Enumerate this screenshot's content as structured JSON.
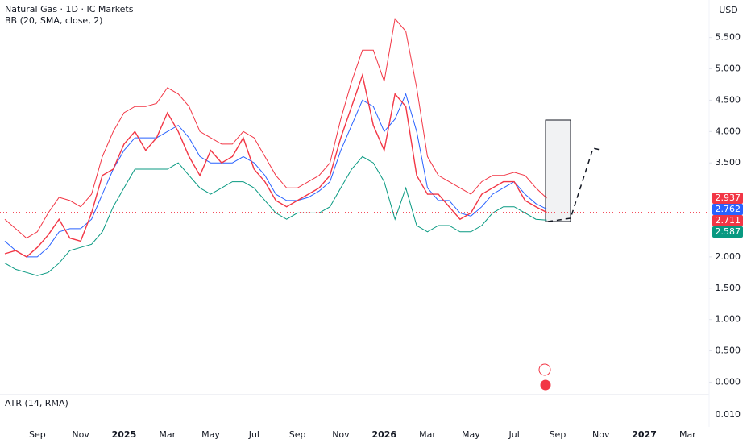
{
  "chart_data": {
    "type": "bollinger",
    "title": "Natural Gas · 1D · IC Markets",
    "indicator": "BB (20, SMA, close, 2)",
    "currency": "USD",
    "categories": [
      null,
      null,
      null,
      "Sep",
      null,
      null,
      null,
      "Nov",
      null,
      null,
      null,
      "2025",
      null,
      null,
      null,
      "Mar",
      null,
      null,
      null,
      "May",
      null,
      null,
      null,
      "Jul",
      null,
      null,
      null,
      "Sep",
      null,
      null,
      null,
      "Nov",
      null,
      null,
      null,
      "2026",
      null,
      null,
      null,
      "Mar",
      null,
      null,
      null,
      "May",
      null,
      null,
      null,
      "Jul",
      null,
      null,
      null,
      "Sep",
      null,
      null,
      null,
      "Nov",
      null,
      null,
      null,
      "2027",
      null,
      null,
      null,
      "Mar"
    ],
    "series": [
      {
        "color": "#f23645",
        "values": [
          2.05,
          2.1,
          2.0,
          2.15,
          2.35,
          2.6,
          2.3,
          2.25,
          2.7,
          3.3,
          3.4,
          3.8,
          4.0,
          3.7,
          3.9,
          4.3,
          4.0,
          3.6,
          3.3,
          3.7,
          3.5,
          3.6,
          3.9,
          3.4,
          3.2,
          2.9,
          2.8,
          2.9,
          3.0,
          3.1,
          3.3,
          3.9,
          4.4,
          4.9,
          4.1,
          3.7,
          4.6,
          4.4,
          3.3,
          3.0,
          3.0,
          2.8,
          2.6,
          2.7,
          3.0,
          3.1,
          3.2,
          3.2,
          2.9,
          2.8,
          2.711,
          null,
          null,
          null,
          null,
          null,
          null,
          null,
          null,
          null,
          null,
          null,
          null,
          null
        ]
      },
      {
        "color": "#f23645",
        "values": [
          2.6,
          2.45,
          2.3,
          2.4,
          2.7,
          2.95,
          2.9,
          2.8,
          3.0,
          3.6,
          4.0,
          4.3,
          4.4,
          4.4,
          4.45,
          4.7,
          4.6,
          4.4,
          4.0,
          3.9,
          3.8,
          3.8,
          4.0,
          3.9,
          3.6,
          3.3,
          3.1,
          3.1,
          3.2,
          3.3,
          3.5,
          4.2,
          4.8,
          5.3,
          5.3,
          4.8,
          5.8,
          5.6,
          4.7,
          3.6,
          3.3,
          3.2,
          3.1,
          3.0,
          3.2,
          3.3,
          3.3,
          3.35,
          3.3,
          3.1,
          2.937,
          null,
          null,
          null,
          null,
          null,
          null,
          null,
          null,
          null,
          null,
          null,
          null,
          null
        ]
      },
      {
        "color": "#2962ff",
        "values": [
          2.25,
          2.1,
          2.0,
          2.0,
          2.15,
          2.4,
          2.45,
          2.45,
          2.6,
          3.0,
          3.4,
          3.7,
          3.9,
          3.9,
          3.9,
          4.0,
          4.1,
          3.9,
          3.6,
          3.5,
          3.5,
          3.5,
          3.6,
          3.5,
          3.3,
          3.0,
          2.9,
          2.9,
          2.95,
          3.05,
          3.2,
          3.7,
          4.1,
          4.5,
          4.4,
          4.0,
          4.2,
          4.6,
          4.0,
          3.1,
          2.9,
          2.9,
          2.7,
          2.65,
          2.8,
          3.0,
          3.1,
          3.2,
          3.0,
          2.85,
          2.762,
          null,
          null,
          null,
          null,
          null,
          null,
          null,
          null,
          null,
          null,
          null,
          null,
          null
        ]
      },
      {
        "color": "#089981",
        "values": [
          1.9,
          1.8,
          1.75,
          1.7,
          1.75,
          1.9,
          2.1,
          2.15,
          2.2,
          2.4,
          2.8,
          3.1,
          3.4,
          3.4,
          3.4,
          3.4,
          3.5,
          3.3,
          3.1,
          3.0,
          3.1,
          3.2,
          3.2,
          3.1,
          2.9,
          2.7,
          2.6,
          2.7,
          2.7,
          2.7,
          2.8,
          3.1,
          3.4,
          3.6,
          3.5,
          3.2,
          2.6,
          3.1,
          2.5,
          2.4,
          2.5,
          2.5,
          2.4,
          2.4,
          2.5,
          2.7,
          2.8,
          2.8,
          2.7,
          2.6,
          2.587,
          null,
          null,
          null,
          null,
          null,
          null,
          null,
          null,
          null,
          null,
          null,
          null,
          null
        ]
      }
    ],
    "ylim": [
      -0.2,
      6.1
    ],
    "yticks": [
      {
        "value": 5.5,
        "label": "5.500"
      },
      {
        "value": 5,
        "label": "5.000"
      },
      {
        "value": 4.5,
        "label": "4.500"
      },
      {
        "value": 4,
        "label": "4.000"
      },
      {
        "value": 3.5,
        "label": "3.500"
      },
      {
        "value": 2,
        "label": "2.000"
      },
      {
        "value": 1.5,
        "label": "1.500"
      },
      {
        "value": 1,
        "label": "1.000"
      },
      {
        "value": 0.5,
        "label": "0.500"
      },
      {
        "value": 0,
        "label": "0.000"
      }
    ],
    "atr": {
      "title": "ATR (14, RMA)",
      "yticks": [
        {
          "value": 0.01,
          "label": "0.010"
        }
      ]
    }
  }
}
